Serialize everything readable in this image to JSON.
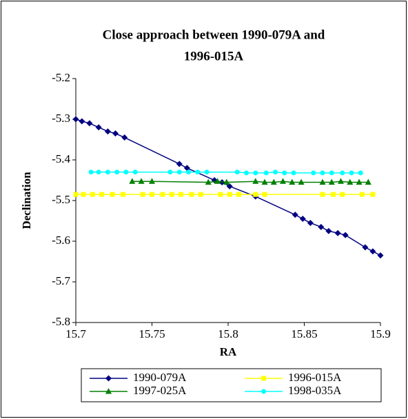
{
  "chart_data": {
    "type": "line",
    "title": [
      "Close approach between 1990-079A and",
      "1996-015A"
    ],
    "x_label": "RA",
    "y_label": "Declination",
    "xlim": [
      15.7,
      15.9
    ],
    "xticks": [
      15.7,
      15.75,
      15.8,
      15.85,
      15.9
    ],
    "ylim": [
      -5.8,
      -5.2
    ],
    "yticks": [
      -5.8,
      -5.7,
      -5.6,
      -5.5,
      -5.4,
      -5.3,
      -5.2
    ],
    "grid": false,
    "legend": "bottom",
    "series": [
      {
        "name": "1990-079A",
        "color": "#000080",
        "marker": "diamond",
        "x": [
          15.7,
          15.704,
          15.709,
          15.715,
          15.721,
          15.726,
          15.732,
          15.768,
          15.773,
          15.791,
          15.796,
          15.801,
          15.818,
          15.844,
          15.849,
          15.854,
          15.861,
          15.866,
          15.872,
          15.877,
          15.89,
          15.895,
          15.9
        ],
        "values": [
          -5.3,
          -5.305,
          -5.31,
          -5.32,
          -5.33,
          -5.335,
          -5.345,
          -5.41,
          -5.42,
          -5.45,
          -5.455,
          -5.465,
          -5.49,
          -5.535,
          -5.545,
          -5.555,
          -5.565,
          -5.575,
          -5.58,
          -5.585,
          -5.615,
          -5.625,
          -5.635
        ]
      },
      {
        "name": "1996-015A",
        "color": "#ffff00",
        "marker": "square",
        "x": [
          15.7,
          15.705,
          15.711,
          15.717,
          15.724,
          15.731,
          15.744,
          15.75,
          15.757,
          15.763,
          15.769,
          15.776,
          15.782,
          15.795,
          15.801,
          15.807,
          15.818,
          15.824,
          15.862,
          15.869,
          15.875,
          15.888,
          15.895
        ],
        "values": [
          -5.485,
          -5.485,
          -5.485,
          -5.485,
          -5.485,
          -5.485,
          -5.485,
          -5.485,
          -5.485,
          -5.485,
          -5.485,
          -5.485,
          -5.485,
          -5.485,
          -5.485,
          -5.485,
          -5.485,
          -5.485,
          -5.485,
          -5.485,
          -5.485,
          -5.485,
          -5.485
        ]
      },
      {
        "name": "1997-025A",
        "color": "#008000",
        "marker": "triangle",
        "x": [
          15.737,
          15.743,
          15.75,
          15.787,
          15.793,
          15.799,
          15.818,
          15.824,
          15.83,
          15.836,
          15.842,
          15.848,
          15.862,
          15.868,
          15.874,
          15.88,
          15.886,
          15.892
        ],
        "values": [
          -5.453,
          -5.453,
          -5.453,
          -5.455,
          -5.453,
          -5.455,
          -5.453,
          -5.455,
          -5.455,
          -5.453,
          -5.455,
          -5.455,
          -5.455,
          -5.455,
          -5.453,
          -5.455,
          -5.455,
          -5.455
        ]
      },
      {
        "name": "1998-035A",
        "color": "#00ffff",
        "marker": "circle",
        "x": [
          15.71,
          15.715,
          15.721,
          15.727,
          15.733,
          15.739,
          15.762,
          15.768,
          15.774,
          15.78,
          15.786,
          15.806,
          15.812,
          15.818,
          15.825,
          15.831,
          15.837,
          15.843,
          15.856,
          15.862,
          15.868,
          15.875,
          15.881,
          15.887
        ],
        "values": [
          -5.43,
          -5.43,
          -5.43,
          -5.43,
          -5.43,
          -5.43,
          -5.43,
          -5.43,
          -5.43,
          -5.43,
          -5.43,
          -5.43,
          -5.432,
          -5.432,
          -5.432,
          -5.43,
          -5.432,
          -5.432,
          -5.432,
          -5.432,
          -5.432,
          -5.432,
          -5.432,
          -5.432
        ]
      }
    ]
  }
}
